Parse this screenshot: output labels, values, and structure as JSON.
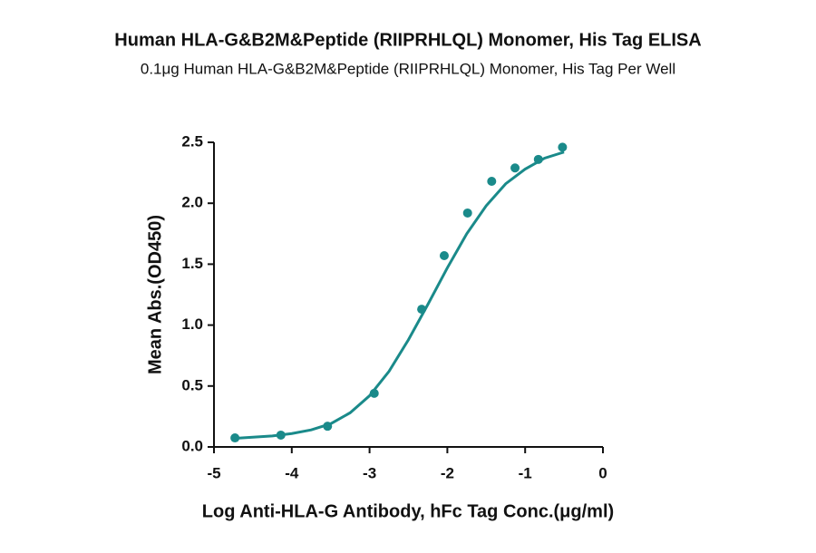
{
  "chart_data": {
    "type": "scatter",
    "title": "Human HLA-G&B2M&Peptide (RIIPRHLQL) Monomer, His Tag ELISA",
    "subtitle": "0.1μg Human HLA-G&B2M&Peptide (RIIPRHLQL) Monomer, His Tag Per Well",
    "x_label": "Log Anti-HLA-G Antibody, hFc Tag Conc.(μg/ml)",
    "y_label": "Mean Abs.(OD450)",
    "color": "#1a8a8a",
    "x": [
      -4.73,
      -4.14,
      -3.54,
      -2.94,
      -2.33,
      -2.04,
      -1.74,
      -1.43,
      -1.13,
      -0.83,
      -0.52
    ],
    "values": [
      0.074,
      0.097,
      0.17,
      0.44,
      1.13,
      1.57,
      1.92,
      2.18,
      2.29,
      2.36,
      2.46
    ],
    "fit_x": [
      -4.75,
      -4.5,
      -4.25,
      -4,
      -3.75,
      -3.5,
      -3.25,
      -3,
      -2.75,
      -2.5,
      -2.25,
      -2,
      -1.75,
      -1.5,
      -1.25,
      -1,
      -0.75,
      -0.5
    ],
    "fit_values": [
      0.07,
      0.08,
      0.09,
      0.11,
      0.14,
      0.19,
      0.28,
      0.42,
      0.62,
      0.88,
      1.17,
      1.47,
      1.75,
      1.98,
      2.16,
      2.28,
      2.37,
      2.42
    ],
    "xlim": [
      -5,
      0
    ],
    "xticks": [
      -5,
      -4,
      -3,
      -2,
      -1,
      0
    ],
    "ylim": [
      0,
      2.5
    ],
    "yticks": [
      {
        "value": 0,
        "label": "0.0"
      },
      0.5,
      {
        "value": 1,
        "label": "1.0"
      },
      1.5,
      {
        "value": 2,
        "label": "2.0"
      },
      2.5
    ],
    "grid": false
  }
}
